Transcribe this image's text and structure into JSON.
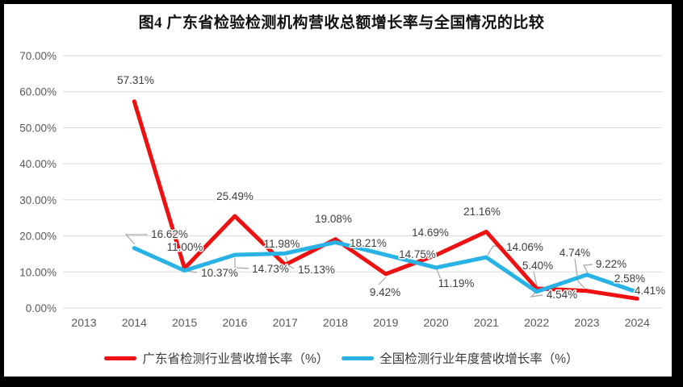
{
  "chart_data": {
    "type": "line",
    "title": "图4  广东省检验检测机构营收总额增长率与全国情况的比较",
    "categories": [
      "2013",
      "2014",
      "2015",
      "2016",
      "2017",
      "2018",
      "2019",
      "2020",
      "2021",
      "2022",
      "2023",
      "2024"
    ],
    "series": [
      {
        "name": "广东省检测行业营收增长率（%）",
        "color": "#ed1111",
        "values": [
          null,
          57.31,
          11.0,
          25.49,
          11.98,
          19.08,
          9.42,
          14.69,
          21.16,
          5.4,
          4.74,
          2.58
        ]
      },
      {
        "name": "全国检测行业年度营收增长率（%）",
        "color": "#29b2e6",
        "values": [
          null,
          16.62,
          10.37,
          14.73,
          15.13,
          18.21,
          14.75,
          11.19,
          14.06,
          4.54,
          9.22,
          4.41
        ]
      }
    ],
    "ylim": [
      0,
      70
    ],
    "ytick_step": 10,
    "ytick_labels": [
      "70.00%",
      "60.00%",
      "50.00%",
      "40.00%",
      "30.00%",
      "20.00%",
      "10.00%",
      "0.00%"
    ],
    "value_suffix": "%",
    "grid": "horizontal",
    "legend_position": "bottom",
    "colors": {
      "grid": "#d9d9d9",
      "axis_text": "#595959",
      "data_label_text": "#3d3d3d",
      "leader_line": "#a6a6a6",
      "frame_border": "#000000",
      "background": "#ffffff"
    }
  }
}
